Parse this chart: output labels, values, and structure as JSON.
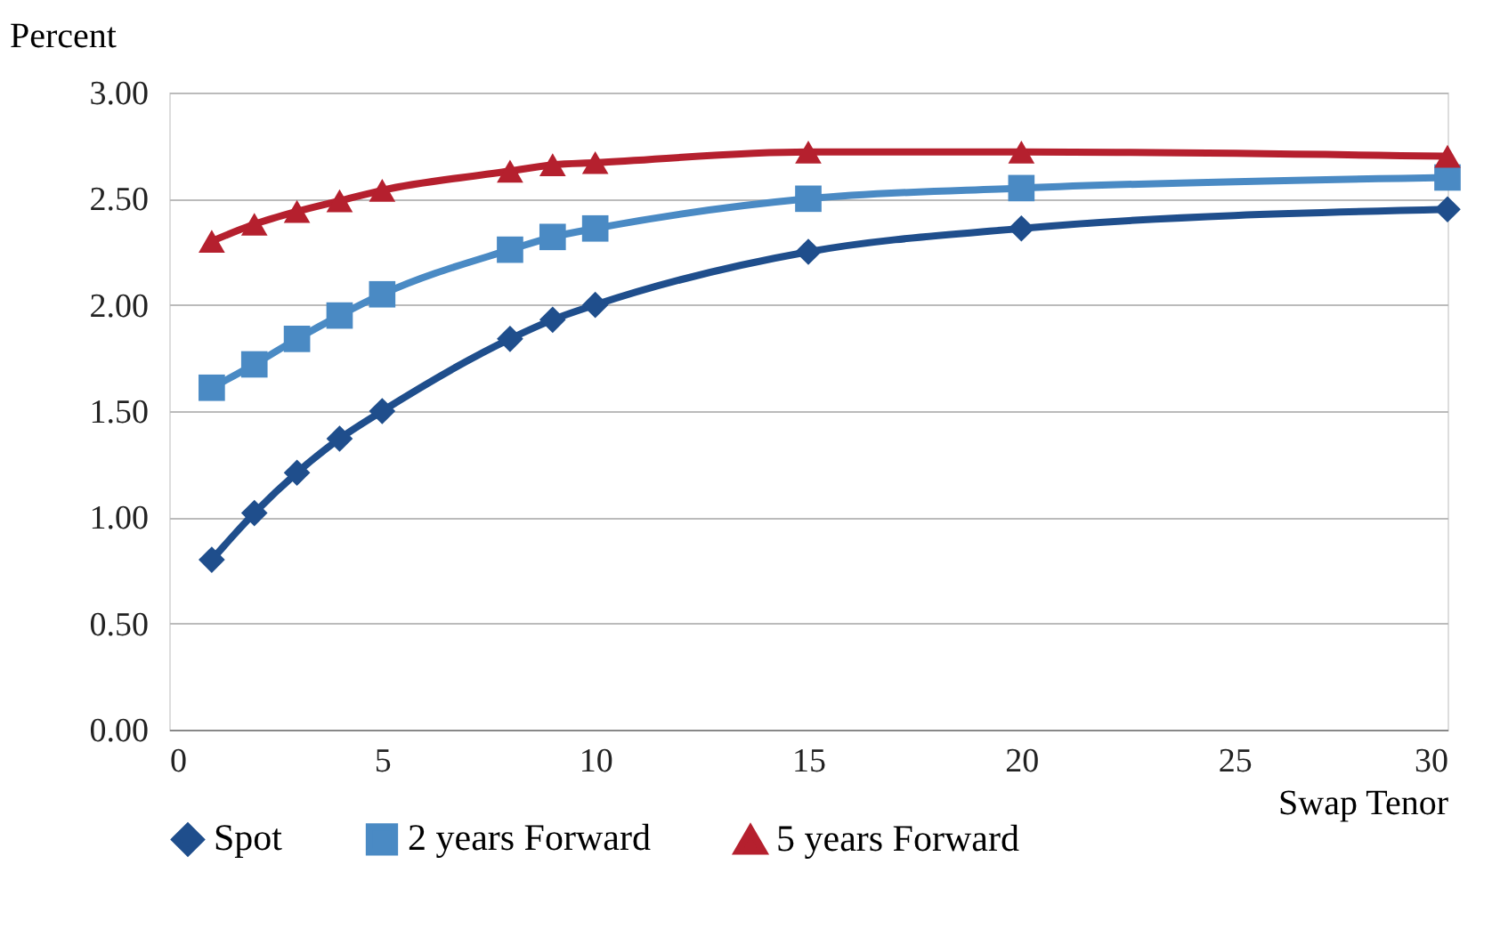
{
  "chart_data": {
    "type": "line",
    "ylabel": "Percent",
    "xlabel": "Swap Tenor",
    "x": [
      1,
      2,
      3,
      4,
      5,
      8,
      9,
      10,
      15,
      20,
      30
    ],
    "series": [
      {
        "name": "Spot",
        "color": "#1f4e8c",
        "marker": "diamond",
        "values": [
          0.8,
          1.02,
          1.21,
          1.37,
          1.5,
          1.84,
          1.93,
          2.0,
          2.25,
          2.36,
          2.45
        ]
      },
      {
        "name": "2 years Forward",
        "color": "#4a8ac4",
        "marker": "square",
        "values": [
          1.61,
          1.72,
          1.84,
          1.95,
          2.05,
          2.26,
          2.32,
          2.36,
          2.5,
          2.55,
          2.6
        ]
      },
      {
        "name": "5 years Forward",
        "color": "#b5202e",
        "marker": "triangle",
        "values": [
          2.3,
          2.38,
          2.44,
          2.49,
          2.54,
          2.63,
          2.66,
          2.67,
          2.72,
          2.72,
          2.7
        ]
      }
    ],
    "xlim": [
      0,
      30
    ],
    "xticks": [
      0,
      5,
      10,
      15,
      20,
      25,
      30
    ],
    "ylim": [
      0,
      3
    ],
    "yticks": [
      {
        "value": 0,
        "label": "0.00"
      },
      {
        "value": 0.5,
        "label": "0.50"
      },
      {
        "value": 1,
        "label": "1.00"
      },
      {
        "value": 1.5,
        "label": "1.50"
      },
      {
        "value": 2,
        "label": "2.00"
      },
      {
        "value": 2.5,
        "label": "2.50"
      },
      {
        "value": 3,
        "label": "3.00"
      }
    ],
    "grid": "y",
    "legend": "bottom",
    "line_style": "solid"
  }
}
